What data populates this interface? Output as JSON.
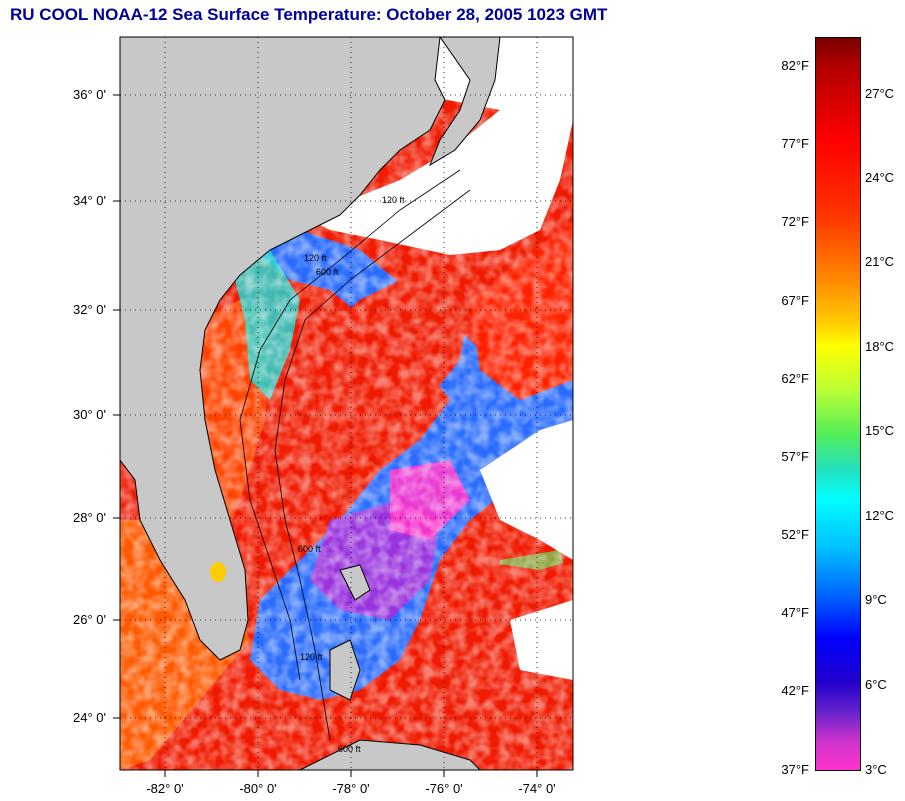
{
  "title": "RU COOL  NOAA-12  Sea Surface Temperature:  October 28, 2005 1023 GMT",
  "map": {
    "latitude_labels": [
      "36° 0'",
      "34° 0'",
      "32° 0'",
      "30° 0'",
      "28° 0'",
      "26° 0'",
      "24° 0'"
    ],
    "longitude_labels": [
      "-82° 0'",
      "-80° 0'",
      "-78° 0'",
      "-76° 0'",
      "-74° 0'"
    ],
    "contour_labels": [
      "120 ft",
      "600 ft",
      "120 ft",
      "600 ft",
      "120 ft",
      "600 ft"
    ],
    "land_color": "#c8c8c8",
    "cloud_color": "#ffffff",
    "grid": "dotted"
  },
  "colorbar": {
    "fahrenheit_labels": [
      "82°F",
      "77°F",
      "72°F",
      "67°F",
      "62°F",
      "57°F",
      "52°F",
      "47°F",
      "42°F",
      "37°F"
    ],
    "celsius_labels": [
      "27°C",
      "24°C",
      "21°C",
      "18°C",
      "15°C",
      "12°C",
      "9°C",
      "6°C",
      "3°C"
    ],
    "range_f": [
      37,
      83
    ],
    "range_c": [
      3,
      28
    ]
  }
}
